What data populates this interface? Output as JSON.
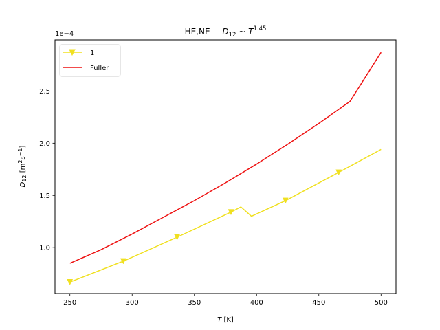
{
  "chart_data": {
    "type": "line",
    "title": {
      "prefix": "HE,NE",
      "sym": "D",
      "sub": "12",
      "mid": " ~ ",
      "sym2": "T",
      "sup": "1.45"
    },
    "xlabel": {
      "sym": "T",
      "unit": " [K]"
    },
    "ylabel": {
      "sym": "D",
      "sub": "12",
      "u1": " [m",
      "sup1": "2",
      "u2": "s",
      "sup2": "−1",
      "u3": "]"
    },
    "scale_label": "1e−4",
    "xlim": [
      238,
      512
    ],
    "ylim": [
      0.56,
      2.99
    ],
    "xticks": [
      250,
      300,
      350,
      400,
      450,
      500
    ],
    "xtick_labels": [
      "250",
      "300",
      "350",
      "400",
      "450",
      "500"
    ],
    "yticks": [
      1.0,
      1.5,
      2.0,
      2.5
    ],
    "ytick_labels": [
      "1.0",
      "1.5",
      "2.0",
      "2.5"
    ],
    "legend_position": "upper left",
    "grid": false,
    "series": [
      {
        "name": "1",
        "color": "#f0e020",
        "marker": "triangle-down",
        "x": [
          250,
          292.9,
          336.1,
          379.4,
          387.4,
          395.9,
          423.2,
          465.9,
          500
        ],
        "y": [
          0.67,
          0.87,
          1.1,
          1.34,
          1.39,
          1.3,
          1.45,
          1.72,
          1.94
        ],
        "marker_x": [
          250,
          292.9,
          336.1,
          379.4,
          423.2,
          465.9
        ]
      },
      {
        "name": "Fuller",
        "color": "#ee1111",
        "marker": "none",
        "x": [
          250,
          275,
          300,
          325,
          350,
          375,
          400,
          425,
          450,
          475,
          500
        ],
        "y": [
          0.85,
          0.98,
          1.13,
          1.29,
          1.45,
          1.62,
          1.8,
          1.99,
          2.19,
          2.4,
          2.87
        ]
      }
    ]
  }
}
